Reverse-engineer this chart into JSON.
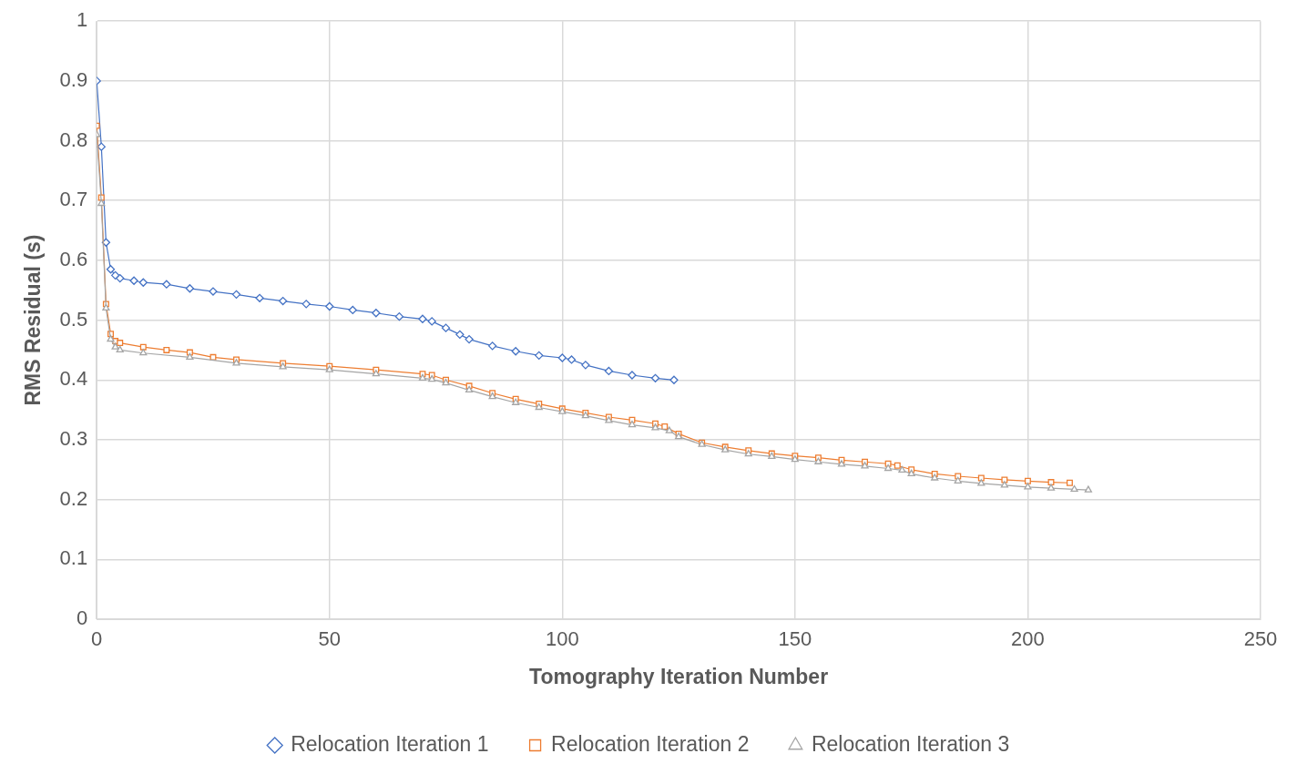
{
  "chart_data": {
    "type": "line",
    "xlabel": "Tomography Iteration Number",
    "ylabel": "RMS Residual (s)",
    "xlim": [
      0,
      250
    ],
    "xticks": [
      0,
      50,
      100,
      150,
      200,
      250
    ],
    "ylim": [
      0,
      1
    ],
    "yticks": [
      0,
      0.1,
      0.2,
      0.3,
      0.4,
      0.5,
      0.6,
      0.7,
      0.8,
      0.9,
      1
    ],
    "grid": true,
    "legend": "bottom",
    "line_style": "solid",
    "series": [
      {
        "name": "Relocation Iteration 1",
        "color": "#4472c4",
        "marker": "diamond",
        "x": [
          0,
          1,
          2,
          3,
          4,
          5,
          8,
          10,
          15,
          20,
          25,
          30,
          35,
          40,
          45,
          50,
          55,
          60,
          65,
          70,
          72,
          75,
          78,
          80,
          85,
          90,
          95,
          100,
          102,
          105,
          110,
          115,
          120,
          124
        ],
        "values": [
          0.9,
          0.79,
          0.63,
          0.585,
          0.575,
          0.57,
          0.566,
          0.563,
          0.56,
          0.553,
          0.548,
          0.543,
          0.537,
          0.532,
          0.527,
          0.523,
          0.517,
          0.512,
          0.506,
          0.502,
          0.498,
          0.487,
          0.476,
          0.468,
          0.457,
          0.448,
          0.441,
          0.437,
          0.434,
          0.425,
          0.415,
          0.408,
          0.403,
          0.4
        ]
      },
      {
        "name": "Relocation Iteration 2",
        "color": "#ed7d31",
        "marker": "square",
        "x": [
          0,
          1,
          2,
          3,
          4,
          5,
          10,
          15,
          20,
          25,
          30,
          40,
          50,
          60,
          70,
          72,
          75,
          80,
          85,
          90,
          95,
          100,
          105,
          110,
          115,
          120,
          122,
          125,
          130,
          135,
          140,
          145,
          150,
          155,
          160,
          165,
          170,
          172,
          175,
          180,
          185,
          190,
          195,
          200,
          205,
          209
        ],
        "values": [
          0.825,
          0.705,
          0.527,
          0.477,
          0.465,
          0.462,
          0.455,
          0.45,
          0.446,
          0.438,
          0.434,
          0.428,
          0.423,
          0.417,
          0.41,
          0.408,
          0.4,
          0.39,
          0.378,
          0.368,
          0.36,
          0.352,
          0.345,
          0.338,
          0.333,
          0.327,
          0.322,
          0.31,
          0.295,
          0.288,
          0.282,
          0.277,
          0.273,
          0.27,
          0.266,
          0.263,
          0.26,
          0.257,
          0.25,
          0.243,
          0.239,
          0.236,
          0.233,
          0.231,
          0.229,
          0.228
        ]
      },
      {
        "name": "Relocation Iteration 3",
        "color": "#a5a5a5",
        "marker": "triangle",
        "x": [
          0,
          1,
          2,
          3,
          4,
          5,
          10,
          20,
          30,
          40,
          50,
          60,
          70,
          72,
          75,
          80,
          85,
          90,
          95,
          100,
          105,
          110,
          115,
          120,
          123,
          125,
          130,
          135,
          140,
          145,
          150,
          155,
          160,
          165,
          170,
          173,
          175,
          180,
          185,
          190,
          195,
          200,
          205,
          210,
          213
        ],
        "values": [
          0.81,
          0.695,
          0.52,
          0.468,
          0.455,
          0.45,
          0.445,
          0.438,
          0.428,
          0.422,
          0.417,
          0.41,
          0.403,
          0.401,
          0.395,
          0.383,
          0.372,
          0.362,
          0.354,
          0.347,
          0.34,
          0.332,
          0.325,
          0.32,
          0.315,
          0.305,
          0.292,
          0.283,
          0.276,
          0.272,
          0.267,
          0.263,
          0.259,
          0.256,
          0.252,
          0.249,
          0.243,
          0.236,
          0.231,
          0.227,
          0.224,
          0.221,
          0.219,
          0.217,
          0.216
        ]
      }
    ]
  }
}
